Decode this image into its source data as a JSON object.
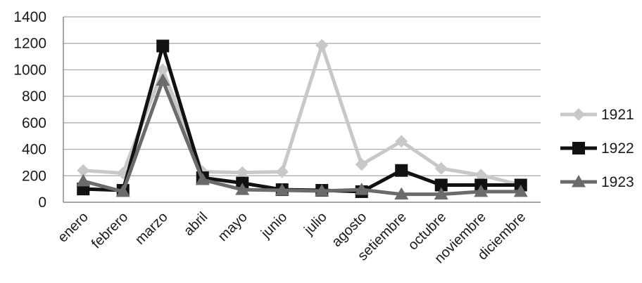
{
  "chart_data": {
    "type": "line",
    "title": "",
    "xlabel": "",
    "ylabel": "",
    "ylim": [
      0,
      1400
    ],
    "yticks": [
      0,
      200,
      400,
      600,
      800,
      1000,
      1200,
      1400
    ],
    "ytick_labels": [
      "0",
      "200",
      "400",
      "600",
      "800",
      "1000",
      "1200",
      "1400"
    ],
    "grid": true,
    "legend_position": "right",
    "categories": [
      "enero",
      "febrero",
      "marzo",
      "abril",
      "mayo",
      "junio",
      "julio",
      "agosto",
      "setiembre",
      "octubre",
      "noviembre",
      "diciembre"
    ],
    "series": [
      {
        "name": "1921",
        "marker": "diamond",
        "color": "#c8c8c8",
        "values": [
          240,
          220,
          1000,
          230,
          225,
          230,
          1185,
          285,
          460,
          255,
          205,
          130
        ]
      },
      {
        "name": "1922",
        "marker": "square",
        "color": "#111111",
        "values": [
          100,
          90,
          1180,
          185,
          145,
          95,
          90,
          80,
          240,
          130,
          130,
          130
        ]
      },
      {
        "name": "1923",
        "marker": "triangle",
        "color": "#6b6b6b",
        "values": [
          160,
          80,
          920,
          170,
          95,
          90,
          85,
          95,
          60,
          60,
          80,
          80
        ]
      }
    ]
  }
}
